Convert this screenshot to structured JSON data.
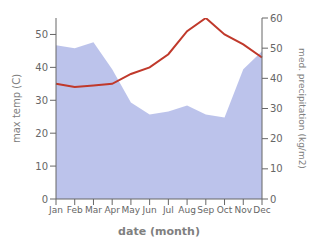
{
  "chart_data": {
    "type": "line",
    "categories": [
      "Jan",
      "Feb",
      "Mar",
      "Apr",
      "May",
      "Jun",
      "Jul",
      "Aug",
      "Sep",
      "Oct",
      "Nov",
      "Dec"
    ],
    "xlabel": "date (month)",
    "ylabel": "max temp (C)",
    "y2label": "med. precipitation (kg/m2)",
    "ylim": [
      0,
      55
    ],
    "yticks": [
      0,
      10,
      20,
      30,
      40,
      50
    ],
    "y2lim": [
      0,
      60
    ],
    "y2ticks": [
      0,
      10,
      20,
      30,
      40,
      50,
      60
    ],
    "grid": false,
    "series": [
      {
        "type": "area",
        "axis": "y2",
        "color": "#b0b8e8",
        "values": [
          51,
          50,
          52,
          43,
          32,
          28,
          29,
          31,
          28,
          27,
          43,
          49
        ]
      },
      {
        "type": "line",
        "axis": "y",
        "color": "#c0392b",
        "values": [
          35,
          34,
          34.5,
          35,
          38,
          40,
          44,
          51,
          55,
          50,
          47,
          43
        ]
      }
    ]
  }
}
